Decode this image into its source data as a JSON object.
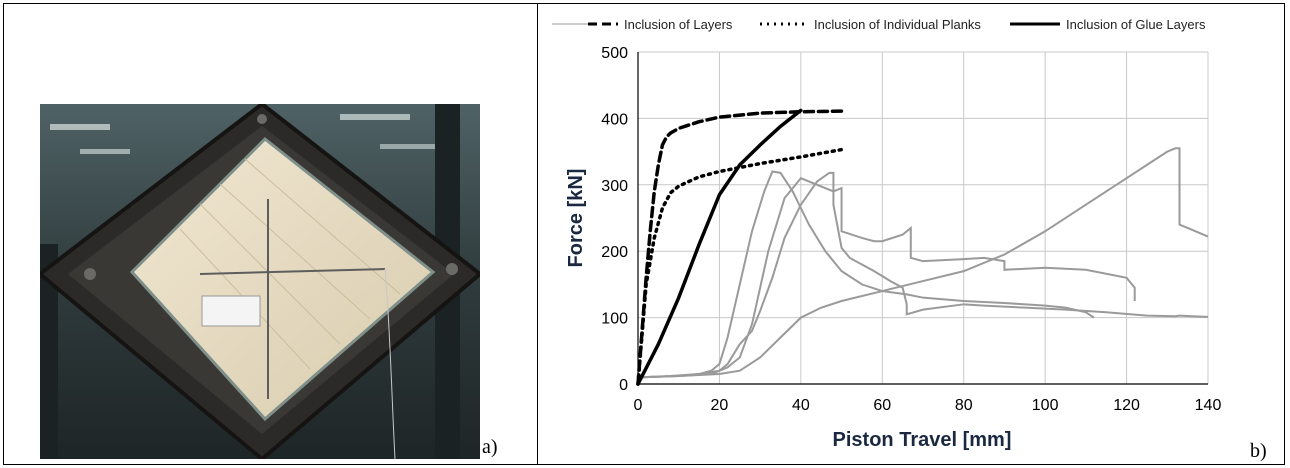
{
  "panels": {
    "a_label": "a)",
    "b_label": "b)"
  },
  "photo": {
    "icon": "timber-panel-test-photo",
    "colors": {
      "wood": "#e7dcc4",
      "steel": "#2b2a28",
      "background": "#3b4a4c"
    }
  },
  "chart_data": {
    "type": "line",
    "title": "",
    "xlabel": "Piston Travel [mm]",
    "ylabel": "Force [kN]",
    "xlim": [
      0,
      140
    ],
    "ylim": [
      0,
      500
    ],
    "x_ticks": [
      "0",
      "20",
      "40",
      "60",
      "80",
      "100",
      "120",
      "140"
    ],
    "y_ticks": [
      "0",
      "100",
      "200",
      "300",
      "400",
      "500"
    ],
    "grid": true,
    "legend_position": "top",
    "series": [
      {
        "name": "Inclusion of Layers",
        "style": "dashed",
        "color": "#000000",
        "x": [
          0,
          1,
          2,
          3,
          4,
          5,
          6,
          7,
          8,
          10,
          15,
          20,
          30,
          40,
          50
        ],
        "y": [
          0,
          80,
          160,
          230,
          290,
          330,
          360,
          372,
          378,
          385,
          395,
          402,
          408,
          410,
          411
        ]
      },
      {
        "name": "Inclusion of Individual Planks",
        "style": "dotted",
        "color": "#000000",
        "x": [
          0,
          2,
          4,
          6,
          8,
          10,
          15,
          20,
          30,
          40,
          50
        ],
        "y": [
          0,
          150,
          220,
          265,
          288,
          298,
          312,
          320,
          332,
          342,
          353
        ]
      },
      {
        "name": "Inclusion of Glue Layers",
        "style": "solid",
        "color": "#000000",
        "x": [
          0,
          5,
          10,
          15,
          20,
          25,
          30,
          35,
          40
        ],
        "y": [
          0,
          60,
          130,
          210,
          285,
          330,
          360,
          388,
          412
        ]
      }
    ],
    "experimental_curves": [
      {
        "color": "#9a9a9a",
        "x": [
          0,
          10,
          15,
          18,
          20,
          22,
          25,
          28,
          31,
          33,
          35,
          38,
          42,
          46,
          50,
          55,
          60,
          66,
          70,
          80,
          90,
          100,
          105,
          110,
          112
        ],
        "y": [
          10,
          12,
          15,
          20,
          30,
          70,
          150,
          230,
          290,
          320,
          318,
          290,
          240,
          200,
          170,
          150,
          140,
          135,
          130,
          125,
          122,
          118,
          115,
          108,
          100
        ]
      },
      {
        "color": "#9a9a9a",
        "x": [
          0,
          8,
          15,
          18,
          20,
          22,
          25,
          28,
          32,
          36,
          40,
          44,
          48,
          50,
          50,
          55,
          58,
          60,
          65,
          67,
          67,
          70,
          80,
          85,
          90,
          90,
          100,
          110,
          120,
          122,
          122
        ],
        "y": [
          10,
          12,
          15,
          18,
          20,
          25,
          40,
          90,
          200,
          280,
          310,
          300,
          290,
          295,
          230,
          220,
          215,
          215,
          225,
          235,
          190,
          185,
          188,
          190,
          185,
          172,
          175,
          172,
          160,
          145,
          125
        ]
      },
      {
        "color": "#9a9a9a",
        "x": [
          0,
          10,
          18,
          20,
          22,
          25,
          28,
          30,
          33,
          36,
          40,
          44,
          47,
          48,
          48,
          50,
          52,
          55,
          58,
          62,
          65,
          66,
          66,
          70,
          80,
          85,
          95,
          105,
          115,
          125,
          132,
          133,
          133,
          136,
          140
        ],
        "y": [
          10,
          12,
          15,
          20,
          30,
          60,
          80,
          110,
          160,
          220,
          270,
          305,
          318,
          318,
          270,
          205,
          190,
          180,
          170,
          155,
          145,
          120,
          105,
          112,
          120,
          118,
          115,
          112,
          108,
          103,
          102,
          103,
          103,
          102,
          101
        ]
      },
      {
        "color": "#9a9a9a",
        "x": [
          0,
          10,
          20,
          25,
          30,
          35,
          40,
          45,
          50,
          60,
          70,
          80,
          90,
          100,
          110,
          120,
          125,
          130,
          132,
          133,
          133,
          135,
          140
        ],
        "y": [
          10,
          12,
          15,
          20,
          40,
          70,
          100,
          115,
          125,
          140,
          155,
          170,
          195,
          230,
          270,
          310,
          330,
          350,
          355,
          355,
          240,
          235,
          222
        ]
      }
    ]
  }
}
